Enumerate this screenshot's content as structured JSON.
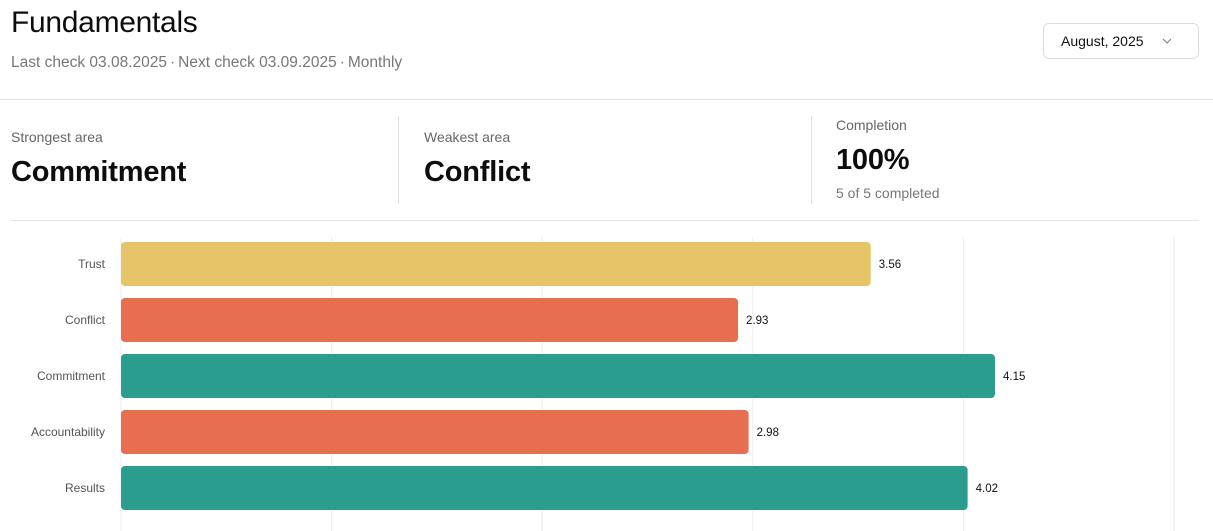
{
  "header": {
    "title": "Fundamentals",
    "last_check": "Last check 03.08.2025",
    "next_check": "Next check 03.09.2025",
    "frequency": "Monthly",
    "separator": "·"
  },
  "period_select": {
    "value": "August, 2025",
    "icon": "chevron-down-icon"
  },
  "stats": {
    "strongest": {
      "label": "Strongest area",
      "value": "Commitment"
    },
    "weakest": {
      "label": "Weakest area",
      "value": "Conflict"
    },
    "completion": {
      "label": "Completion",
      "value": "100%",
      "sub": "5 of 5 completed"
    }
  },
  "colors": {
    "yellow": "#e8c468",
    "red": "#e76e50",
    "teal": "#2a9d8f"
  },
  "chart_data": {
    "type": "bar",
    "orientation": "horizontal",
    "categories": [
      "Trust",
      "Conflict",
      "Commitment",
      "Accountability",
      "Results"
    ],
    "values": [
      3.56,
      2.93,
      4.15,
      2.98,
      4.02
    ],
    "value_labels": [
      "3.56",
      "2.93",
      "4.15",
      "2.98",
      "4.02"
    ],
    "bar_colors": [
      "#e8c468",
      "#e76e50",
      "#2a9d8f",
      "#e76e50",
      "#2a9d8f"
    ],
    "xlim": [
      0,
      5
    ],
    "grid": true
  }
}
